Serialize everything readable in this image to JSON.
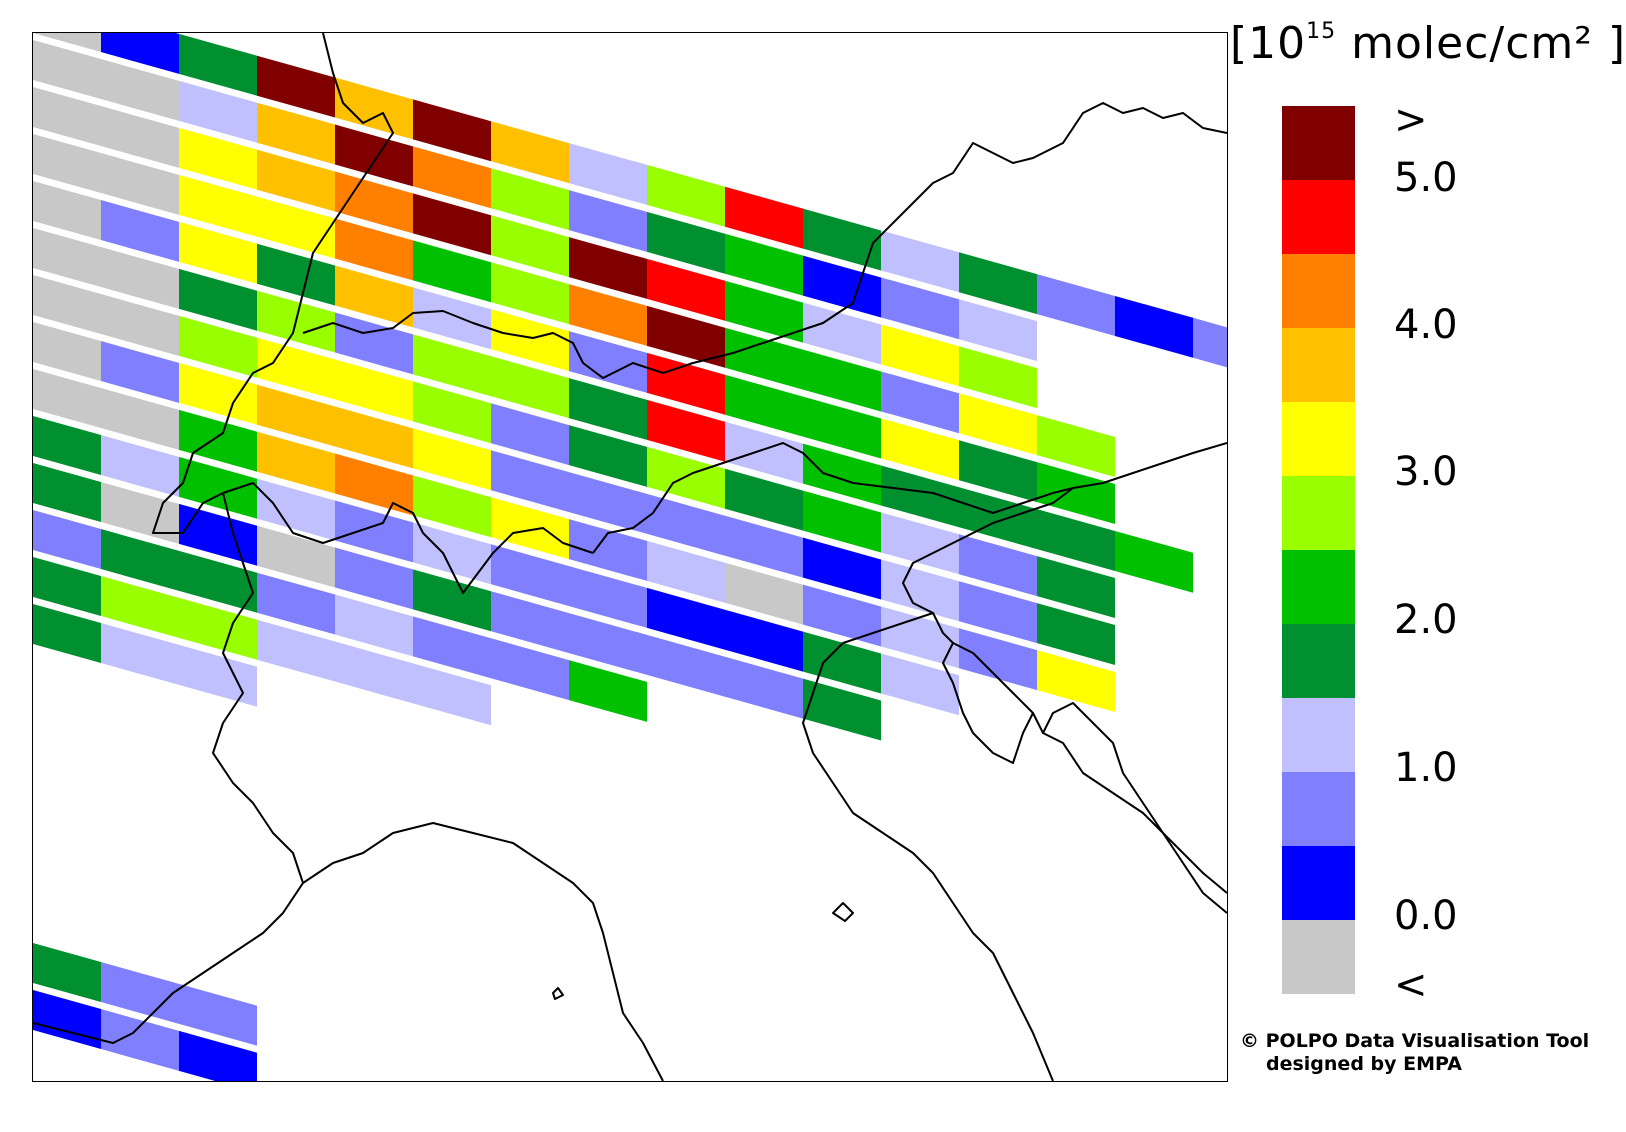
{
  "legend": {
    "unit_prefix": "[10",
    "unit_exp": "15",
    "unit_suffix": " molec/cm² ]",
    "ticks": [
      ">",
      "5.0",
      "4.0",
      "3.0",
      "2.0",
      "1.0",
      "0.0",
      "<"
    ],
    "colors_top_to_bottom": [
      "#800000",
      "#ff0000",
      "#ff8000",
      "#ffc000",
      "#ffff00",
      "#99ff00",
      "#00c000",
      "#009030",
      "#c0c0ff",
      "#8080ff",
      "#0000ff",
      "#c8c8c8"
    ]
  },
  "credit": {
    "line1": "© POLPO Data Visualisation Tool",
    "line2": "designed by EMPA"
  },
  "map": {
    "swath_colors": {
      "darkred": "#800000",
      "red": "#ff0000",
      "orange": "#ff8000",
      "amber": "#ffc000",
      "yellow": "#ffff00",
      "lime": "#99ff00",
      "green": "#00c000",
      "dkgreen": "#009030",
      "lavender": "#c0c0ff",
      "periwinkle": "#8080ff",
      "blue": "#0000ff",
      "gray": "#c8c8c8"
    },
    "swath_rows": [
      [
        "gray",
        "blue",
        "dkgreen",
        "darkred",
        "amber",
        "darkred",
        "amber",
        "lavender",
        "lime",
        "red",
        "dkgreen",
        "lavender",
        "dkgreen",
        "periwinkle",
        "blue",
        "periwinkle"
      ],
      [
        "gray",
        "gray",
        "lavender",
        "amber",
        "darkred",
        "orange",
        "lime",
        "periwinkle",
        "dkgreen",
        "green",
        "blue",
        "periwinkle",
        "lavender"
      ],
      [
        "gray",
        "gray",
        "yellow",
        "amber",
        "orange",
        "darkred",
        "lime",
        "darkred",
        "red",
        "green",
        "lavender",
        "yellow",
        "lime"
      ],
      [
        "gray",
        "gray",
        "yellow",
        "yellow",
        "orange",
        "green",
        "lime",
        "orange",
        "darkred",
        "green",
        "green",
        "periwinkle",
        "yellow",
        "lime"
      ],
      [
        "gray",
        "periwinkle",
        "yellow",
        "dkgreen",
        "amber",
        "lavender",
        "yellow",
        "periwinkle",
        "red",
        "green",
        "green",
        "yellow",
        "dkgreen",
        "green"
      ],
      [
        "gray",
        "gray",
        "dkgreen",
        "lime",
        "periwinkle",
        "lime",
        "lime",
        "dkgreen",
        "red",
        "lavender",
        "green",
        "dkgreen",
        "dkgreen",
        "dkgreen",
        "green"
      ],
      [
        "gray",
        "gray",
        "lime",
        "yellow",
        "yellow",
        "lime",
        "periwinkle",
        "dkgreen",
        "lime",
        "dkgreen",
        "green",
        "lavender",
        "periwinkle",
        "dkgreen"
      ],
      [
        "gray",
        "periwinkle",
        "yellow",
        "amber",
        "amber",
        "yellow",
        "periwinkle",
        "periwinkle",
        "periwinkle",
        "periwinkle",
        "blue",
        "lavender",
        "periwinkle",
        "dkgreen"
      ],
      [
        "gray",
        "gray",
        "green",
        "amber",
        "orange",
        "lime",
        "yellow",
        "periwinkle",
        "lavender",
        "gray",
        "periwinkle",
        "lavender",
        "periwinkle",
        "yellow"
      ],
      [
        "dkgreen",
        "lavender",
        "green",
        "lavender",
        "periwinkle",
        "lavender",
        "periwinkle",
        "periwinkle",
        "blue",
        "blue",
        "dkgreen",
        "lavender"
      ],
      [
        "dkgreen",
        "gray",
        "blue",
        "gray",
        "periwinkle",
        "dkgreen",
        "periwinkle",
        "periwinkle",
        "periwinkle",
        "periwinkle",
        "dkgreen"
      ],
      [
        "periwinkle",
        "dkgreen",
        "dkgreen",
        "periwinkle",
        "lavender",
        "periwinkle",
        "periwinkle",
        "green"
      ],
      [
        "dkgreen",
        "lime",
        "lime",
        "lavender",
        "lavender",
        "lavender"
      ],
      [
        "dkgreen",
        "lavender",
        "lavender"
      ]
    ],
    "bottom_swath_rows": [
      [
        "dkgreen",
        "periwinkle",
        "periwinkle"
      ],
      [
        "blue",
        "periwinkle",
        "blue"
      ]
    ]
  }
}
